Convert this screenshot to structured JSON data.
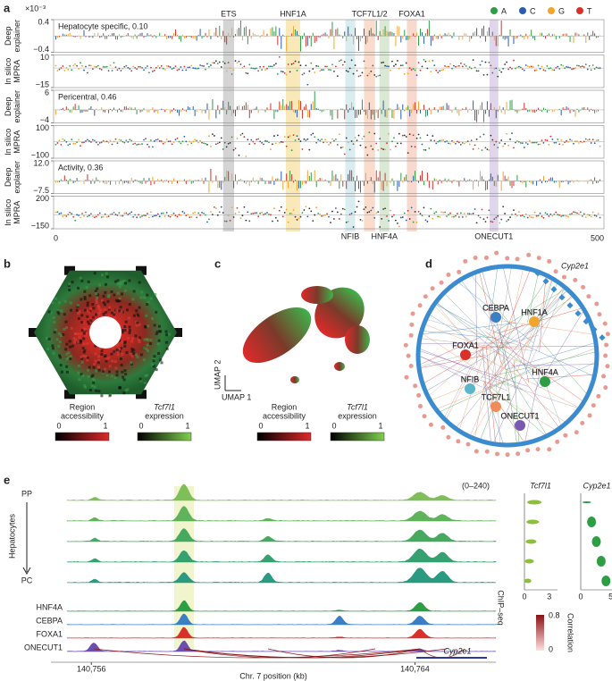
{
  "panel_a": {
    "label": "a",
    "scale": "×10⁻³",
    "legend": [
      {
        "name": "A",
        "color": "#2e9e44"
      },
      {
        "name": "C",
        "color": "#2a5db0"
      },
      {
        "name": "G",
        "color": "#f2a52c"
      },
      {
        "name": "T",
        "color": "#d9302a"
      }
    ],
    "xlim": [
      0,
      500
    ],
    "xticks": [
      0,
      500
    ],
    "bands": [
      {
        "label": "ETS",
        "start": 154,
        "end": 164,
        "color": "#c9c9c9",
        "label_pos": "top"
      },
      {
        "label": "HNF1A",
        "start": 211,
        "end": 224,
        "color": "#f7e3a8",
        "label_pos": "top"
      },
      {
        "label": "NFIB",
        "start": 265,
        "end": 274,
        "color": "#cfe8ee",
        "label_pos": "bottom"
      },
      {
        "label": "TCF7L1/2",
        "start": 282,
        "end": 292,
        "color": "#f8d3bf",
        "label_pos": "top"
      },
      {
        "label": "HNF4A",
        "start": 296,
        "end": 305,
        "color": "#cfe3c9",
        "label_pos": "bottom"
      },
      {
        "label": "FOXA1",
        "start": 321,
        "end": 330,
        "color": "#f8d0c0",
        "label_pos": "top"
      },
      {
        "label": "ONECUT1",
        "start": 396,
        "end": 404,
        "color": "#d8cce6",
        "label_pos": "bottom"
      }
    ],
    "tracks": [
      {
        "row_label": [
          "Deep",
          "explainer"
        ],
        "title": "Hepatocyte specific, 0.10",
        "kind": "bars",
        "ylim": [
          -0.4,
          0.4
        ],
        "yticks": [
          {
            "value": 0.4,
            "label": "0.4"
          },
          {
            "value": -0.4,
            "label": "−0.4"
          }
        ]
      },
      {
        "row_label": [
          "In silico",
          "MPRA"
        ],
        "kind": "dots",
        "ylim": [
          -15,
          10
        ],
        "yticks": [
          10,
          {
            "value": -15,
            "label": "−15"
          }
        ]
      },
      {
        "row_label": [
          "Deep",
          "explainer"
        ],
        "title": "Pericentral, 0.46",
        "kind": "bars",
        "ylim": [
          -4,
          6
        ],
        "yticks": [
          6,
          {
            "value": -4,
            "label": "−4"
          }
        ]
      },
      {
        "row_label": [
          "In silico",
          "MPRA"
        ],
        "kind": "dots",
        "ylim": [
          -100,
          100
        ],
        "yticks": [
          100,
          {
            "value": -100,
            "label": "−100"
          }
        ]
      },
      {
        "row_label": [
          "Deep",
          "explainer"
        ],
        "title": "Activity, 0.36",
        "kind": "bars",
        "ylim": [
          -7.5,
          12
        ],
        "yticks": [
          {
            "value": 12,
            "label": "12.0"
          },
          {
            "value": -7.5,
            "label": "−7.5"
          }
        ]
      },
      {
        "row_label": [
          "In silico",
          "MPRA"
        ],
        "kind": "dots",
        "ylim": [
          -150,
          200
        ],
        "yticks": [
          200,
          {
            "value": -150,
            "label": "−150"
          }
        ]
      }
    ]
  },
  "panel_b": {
    "label": "b",
    "colorbars": [
      {
        "title": [
          "Region",
          "accessibility"
        ],
        "ticks": [
          0,
          1
        ],
        "colors": [
          "#000000",
          "#e0282a"
        ]
      },
      {
        "title": [
          "Tcf7l1",
          "expression"
        ],
        "ticks": [
          0,
          1
        ],
        "colors": [
          "#000000",
          "#7fd04e"
        ]
      }
    ]
  },
  "panel_c": {
    "label": "c",
    "umap_x": "UMAP 1",
    "umap_y": "UMAP 2",
    "colorbars": [
      {
        "title": [
          "Region",
          "accessibility"
        ],
        "ticks": [
          0,
          1
        ],
        "colors": [
          "#000000",
          "#e0282a"
        ]
      },
      {
        "title": [
          "Tcf7l1",
          "expression"
        ],
        "ticks": [
          0,
          1
        ],
        "colors": [
          "#000000",
          "#7fd04e"
        ]
      }
    ]
  },
  "panel_d": {
    "label": "d",
    "target": "Cyp2e1",
    "nodes": [
      {
        "label": "CEBPA",
        "color": "#3b7fc4"
      },
      {
        "label": "HNF1A",
        "color": "#f2a52c"
      },
      {
        "label": "FOXA1",
        "color": "#d9302a"
      },
      {
        "label": "NFIB",
        "color": "#5ab7c9"
      },
      {
        "label": "HNF4A",
        "color": "#2e9e44"
      },
      {
        "label": "TCF7L1",
        "color": "#f08c5a"
      },
      {
        "label": "ONECUT1",
        "color": "#7a59b0"
      }
    ]
  },
  "panel_e": {
    "label": "e",
    "range": "(0–240)",
    "group": "Hepatocytes",
    "top": "PP",
    "bottom": "PC",
    "chip_title": "ChIP–seq",
    "chip": [
      {
        "name": "HNF4A",
        "color": "#2e9e44"
      },
      {
        "name": "CEBPA",
        "color": "#3b7fc4"
      },
      {
        "name": "FOXA1",
        "color": "#d9302a"
      },
      {
        "name": "ONECUT1",
        "color": "#6a4fb0"
      }
    ],
    "correlation": {
      "title": "Correlation",
      "ticks": [
        0,
        0.8
      ]
    },
    "xlim": [
      140755,
      140766
    ],
    "xticks": [
      {
        "value": 140756,
        "label": "140,756"
      },
      {
        "value": 140764,
        "label": "140,764"
      }
    ],
    "xlabel": "Chr. 7 position (kb)",
    "gene": "Cyp2e1",
    "violins": [
      {
        "title": "Tcf7l1",
        "color": "#8cbf3a",
        "xlim": [
          0,
          4
        ],
        "xticks": [
          0,
          3
        ]
      },
      {
        "title": "Cyp2e1",
        "color": "#2e9e44",
        "xlim": [
          0,
          5.5
        ],
        "xticks": [
          0,
          5
        ]
      }
    ]
  }
}
